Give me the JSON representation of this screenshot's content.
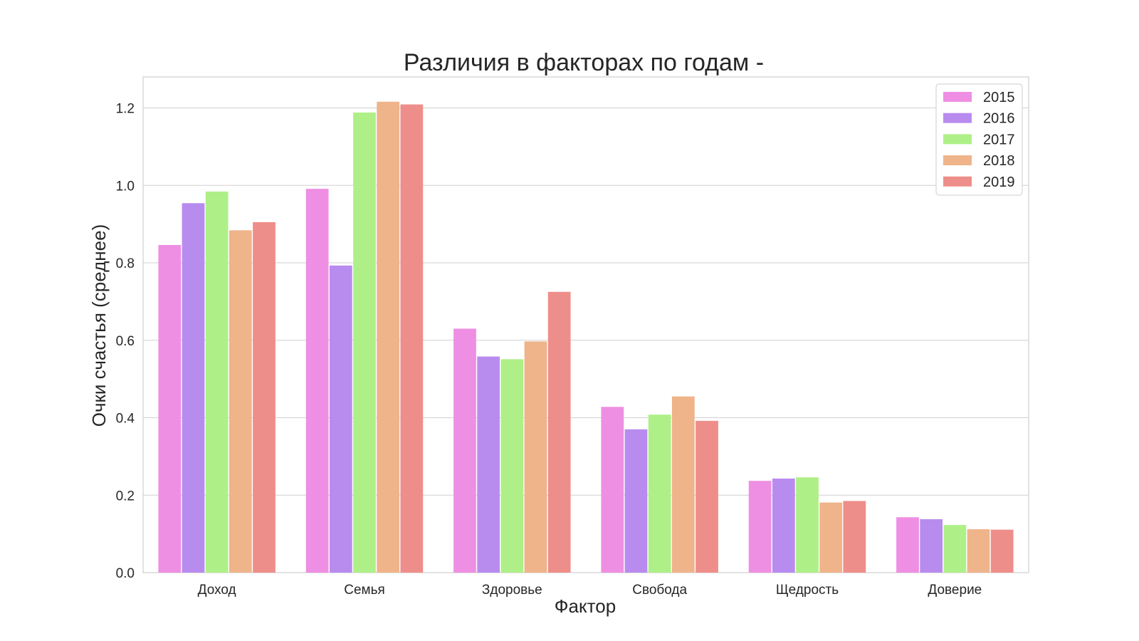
{
  "chart_data": {
    "type": "bar",
    "title": "Различия в факторах по годам -",
    "xlabel": "Фактор",
    "ylabel": "Очки счастья (среднее)",
    "categories": [
      "Доход",
      "Семья",
      "Здоровье",
      "Свобода",
      "Щедрость",
      "Доверие"
    ],
    "yticks": [
      "0.0",
      "0.2",
      "0.4",
      "0.6",
      "0.8",
      "1.0",
      "1.2"
    ],
    "ylim": [
      0,
      1.28
    ],
    "grid": true,
    "legend_position": "top-right",
    "series": [
      {
        "name": "2015",
        "color": "#ee8fe3",
        "values": [
          0.846,
          0.991,
          0.63,
          0.428,
          0.237,
          0.143
        ]
      },
      {
        "name": "2016",
        "color": "#b88cee",
        "values": [
          0.954,
          0.793,
          0.558,
          0.37,
          0.243,
          0.138
        ]
      },
      {
        "name": "2017",
        "color": "#aef087",
        "values": [
          0.984,
          1.188,
          0.551,
          0.408,
          0.246,
          0.123
        ]
      },
      {
        "name": "2018",
        "color": "#efb48a",
        "values": [
          0.884,
          1.216,
          0.597,
          0.455,
          0.181,
          0.112
        ]
      },
      {
        "name": "2019",
        "color": "#ee8e8a",
        "values": [
          0.905,
          1.209,
          0.725,
          0.392,
          0.185,
          0.111
        ]
      }
    ]
  }
}
